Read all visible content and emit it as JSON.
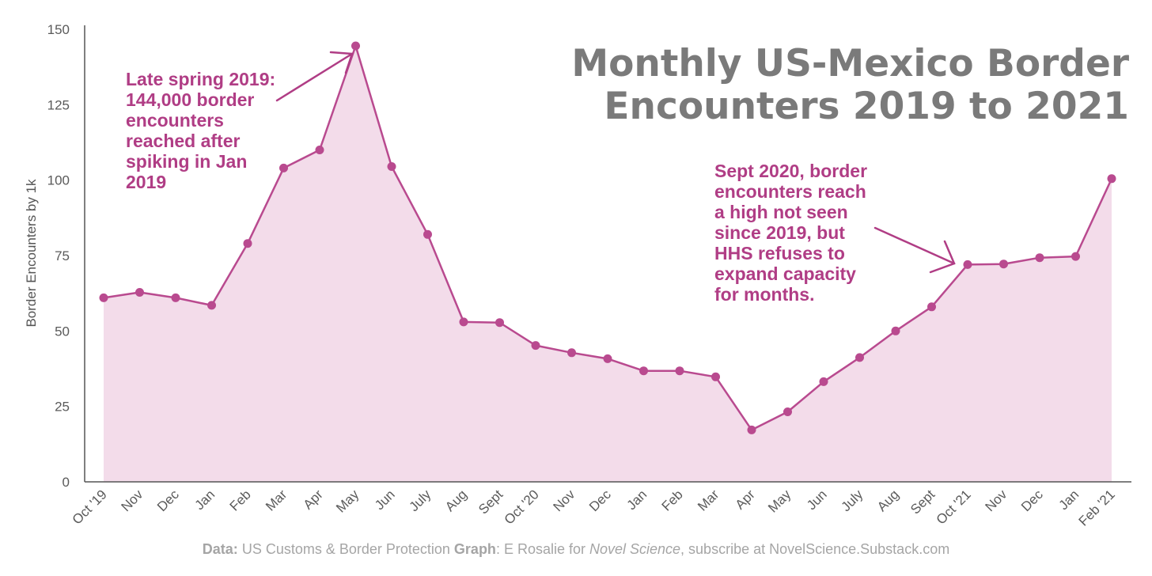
{
  "chart_data": {
    "type": "area",
    "title_lines": [
      "Monthly US-Mexico Border",
      "Encounters 2019 to 2021"
    ],
    "ylabel": "Border Encounters by 1k",
    "xlabel": "",
    "ylim": [
      0,
      150
    ],
    "yticks": [
      0,
      25,
      50,
      75,
      100,
      125,
      150
    ],
    "categories": [
      "Oct '19",
      "Nov",
      "Dec",
      "Jan",
      "Feb",
      "Mar",
      "Apr",
      "May",
      "Jun",
      "July",
      "Aug",
      "Sept",
      "Oct '20",
      "Nov",
      "Dec",
      "Jan",
      "Feb",
      "Mar",
      "Apr",
      "May",
      "Jun",
      "July",
      "Aug",
      "Sept",
      "Oct '21",
      "Nov",
      "Dec",
      "Jan",
      "Feb '21"
    ],
    "values": [
      61,
      62.8,
      61,
      58.5,
      79,
      104,
      110,
      144.5,
      104.5,
      82,
      53,
      52.8,
      45.2,
      42.8,
      40.8,
      36.8,
      36.8,
      34.8,
      17.2,
      23.2,
      33.2,
      41.2,
      50,
      58,
      72,
      72.2,
      74.3,
      74.7,
      100.5
    ],
    "grid": false,
    "colors": {
      "line": "#b94a8f",
      "fill": "#f3dcea",
      "annotation": "#b03d85",
      "axis": "#555555"
    },
    "annotations": [
      {
        "lines": [
          "Late spring 2019:",
          "144,000 border",
          "encounters",
          "reached after",
          "spiking in Jan",
          "2019"
        ],
        "target_index": 7
      },
      {
        "lines": [
          "Sept 2020, border",
          "encounters reach",
          "a high not seen",
          "since 2019, but",
          "HHS refuses to",
          "expand capacity",
          "for months."
        ],
        "target_index": 24
      }
    ],
    "footer": {
      "data_label": "Data:",
      "data_text": " US Customs & Border Protection  ",
      "graph_label": "Graph",
      "graph_text": ": E Rosalie for ",
      "publication": "Novel Science",
      "subscribe_text": ", subscribe at NovelScience.Substack.com"
    }
  }
}
